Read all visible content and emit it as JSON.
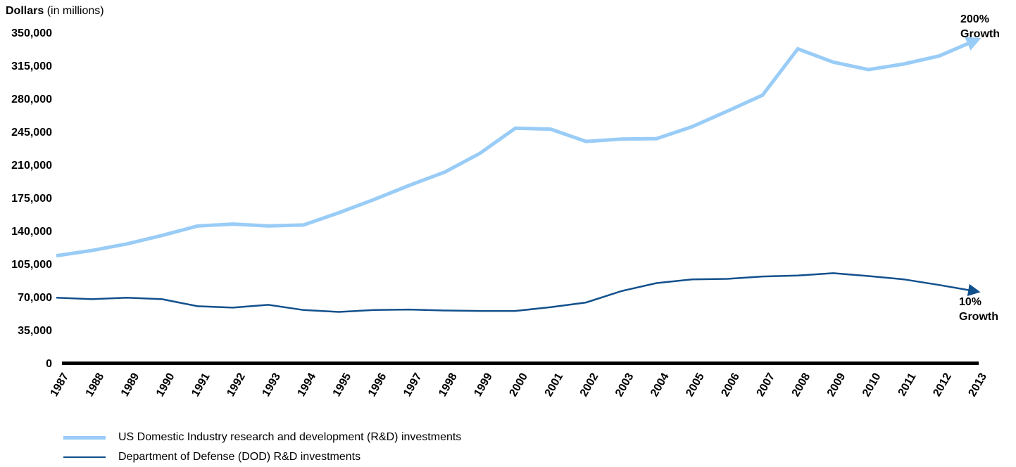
{
  "chart_data": {
    "type": "line",
    "ylabel_bold": "Dollars",
    "ylabel_rest": "(in millions)",
    "ylim": [
      0,
      350000
    ],
    "yticks": [
      0,
      35000,
      70000,
      105000,
      140000,
      175000,
      210000,
      245000,
      280000,
      315000,
      350000
    ],
    "ytick_labels": [
      "0",
      "35,000",
      "70,000",
      "105,000",
      "140,000",
      "175,000",
      "210,000",
      "245,000",
      "280,000",
      "315,000",
      "350,000"
    ],
    "categories": [
      "1987",
      "1988",
      "1989",
      "1990",
      "1991",
      "1992",
      "1993",
      "1994",
      "1995",
      "1996",
      "1997",
      "1998",
      "1999",
      "2000",
      "2001",
      "2002",
      "2003",
      "2004",
      "2005",
      "2006",
      "2007",
      "2008",
      "2009",
      "2010",
      "2011",
      "2012",
      "2013"
    ],
    "series": [
      {
        "name": "US Domestic Industry research and development (R&D) investments",
        "color": "#99ccf6",
        "values": [
          113500,
          119000,
          126000,
          135000,
          145000,
          147000,
          145000,
          146000,
          159000,
          173000,
          188000,
          202000,
          222000,
          248500,
          247500,
          234500,
          237000,
          237500,
          250000,
          266500,
          283500,
          332500,
          318500,
          310500,
          316500,
          325000,
          341000
        ],
        "annotation": [
          "200%",
          "Growth"
        ]
      },
      {
        "name": "Department of Defense (DOD) R&D investments",
        "color": "#12508c",
        "values": [
          69000,
          67500,
          69000,
          67500,
          60000,
          58500,
          61500,
          56000,
          54000,
          56000,
          56500,
          55500,
          55000,
          55000,
          59000,
          64000,
          76000,
          84500,
          88500,
          89000,
          91500,
          92500,
          95000,
          92000,
          88500,
          82500,
          76000
        ],
        "annotation": [
          "10%",
          "Growth"
        ]
      }
    ],
    "grid": false,
    "legend_position": "bottom-left"
  }
}
